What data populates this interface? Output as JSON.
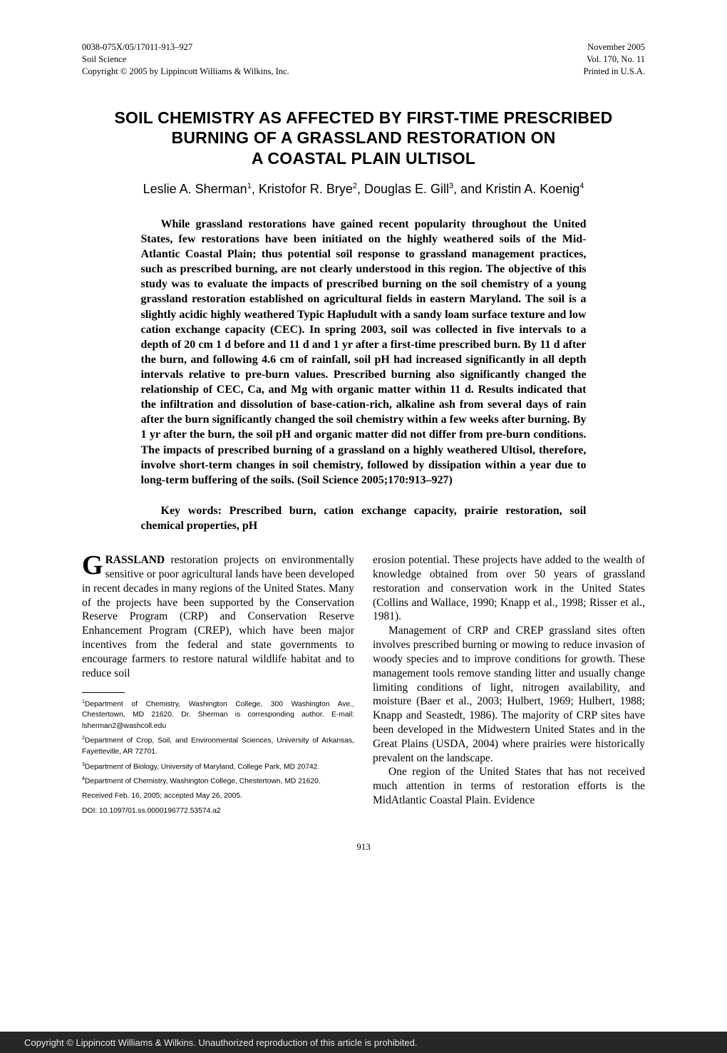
{
  "header": {
    "left_line1": "0038-075X/05/17011-913–927",
    "left_line2": "Soil Science",
    "left_line3": "Copyright © 2005 by Lippincott Williams & Wilkins, Inc.",
    "right_line1": "November 2005",
    "right_line2": "Vol. 170, No. 11",
    "right_line3": "Printed in U.S.A."
  },
  "title_line1": "SOIL CHEMISTRY AS AFFECTED BY FIRST-TIME PRESCRIBED",
  "title_line2": "BURNING OF A GRASSLAND RESTORATION ON",
  "title_line3": "A COASTAL PLAIN ULTISOL",
  "authors_html": "Leslie A. Sherman<sup>1</sup>, Kristofor R. Brye<sup>2</sup>, Douglas E. Gill<sup>3</sup>, and Kristin A. Koenig<sup>4</sup>",
  "abstract": "While grassland restorations have gained recent popularity throughout the United States, few restorations have been initiated on the highly weathered soils of the Mid-Atlantic Coastal Plain; thus potential soil response to grassland management practices, such as prescribed burning, are not clearly understood in this region. The objective of this study was to evaluate the impacts of prescribed burning on the soil chemistry of a young grassland restoration established on agricultural fields in eastern Maryland. The soil is a slightly acidic highly weathered Typic Hapludult with a sandy loam surface texture and low cation exchange capacity (CEC). In spring 2003, soil was collected in five intervals to a depth of 20 cm 1 d before and 11 d and 1 yr after a first-time prescribed burn. By 11 d after the burn, and following 4.6 cm of rainfall, soil pH had increased significantly in all depth intervals relative to pre-burn values. Prescribed burning also significantly changed the relationship of CEC, Ca, and Mg with organic matter within 11 d. Results indicated that the infiltration and dissolution of base-cation-rich, alkaline ash from several days of rain after the burn significantly changed the soil chemistry within a few weeks after burning. By 1 yr after the burn, the soil pH and organic matter did not differ from pre-burn conditions. The impacts of prescribed burning of a grassland on a highly weathered Ultisol, therefore, involve short-term changes in soil chemistry, followed by dissipation within a year due to long-term buffering of the soils. (Soil Science 2005;170:913–927)",
  "keywords": "Key words: Prescribed burn, cation exchange capacity, prairie restoration, soil chemical properties, pH",
  "body": {
    "col1_p1_word": "RASSLAND",
    "col1_p1_rest": " restoration projects on environmentally sensitive or poor agricultural lands have been developed in recent decades in many regions of the United States. Many of the projects have been supported by the Conservation Reserve Program (CRP) and Conservation Reserve Enhancement Program (CREP), which have been major incentives from the federal and state governments to encourage farmers to restore natural wildlife habitat and to reduce soil",
    "col2_p1": "erosion potential. These projects have added to the wealth of knowledge obtained from over 50 years of grassland restoration and conservation work in the United States (Collins and Wallace, 1990; Knapp et al., 1998; Risser et al., 1981).",
    "col2_p2": "Management of CRP and CREP grassland sites often involves prescribed burning or mowing to reduce invasion of woody species and to improve conditions for growth. These management tools remove standing litter and usually change limiting conditions of light, nitrogen availability, and moisture (Baer et al., 2003; Hulbert, 1969; Hulbert, 1988; Knapp and Seastedt, 1986). The majority of CRP sites have been developed in the Midwestern United States and in the Great Plains (USDA, 2004) where prairies were historically prevalent on the landscape.",
    "col2_p3": "One region of the United States that has not received much attention in terms of restoration efforts is the MidAtlantic Coastal Plain. Evidence"
  },
  "affiliations": {
    "a1": "<sup>1</sup>Department of Chemistry, Washington College, 300 Washington Ave., Chestertown, MD 21620. Dr. Sherman is corresponding author. E-mail: lsherman2@washcoll.edu",
    "a2": "<sup>2</sup>Department of Crop, Soil, and Environmental Sciences, University of Arkansas, Fayetteville, AR 72701.",
    "a3": "<sup>3</sup>Department of Biology, University of Maryland, College Park, MD 20742.",
    "a4": "<sup>4</sup>Department of Chemistry, Washington College, Chestertown, MD 21620.",
    "received": "Received Feb. 16, 2005; accepted May 26, 2005.",
    "doi": "DOI: 10.1097/01.ss.0000196772.53574.a2"
  },
  "page_number": "913",
  "copyright_bar": "Copyright © Lippincott Williams & Wilkins. Unauthorized reproduction of this article is prohibited."
}
